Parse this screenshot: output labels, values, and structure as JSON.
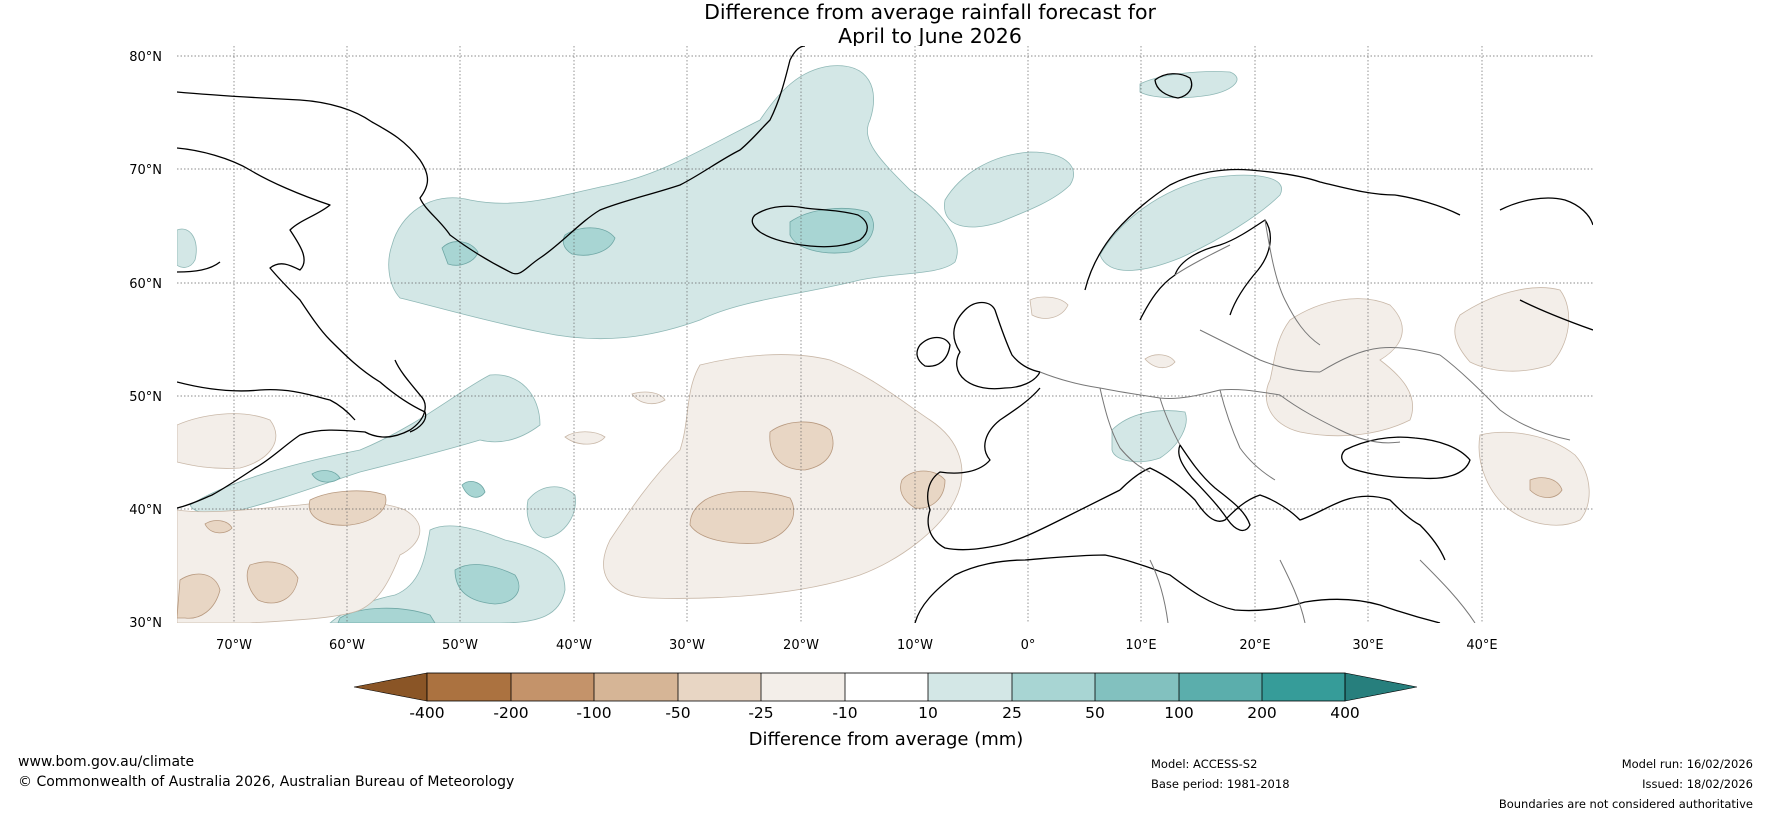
{
  "title": {
    "line1": "Difference from average rainfall forecast for",
    "line2": "April to June 2026"
  },
  "axes": {
    "lat_labels": [
      "80°N",
      "70°N",
      "60°N",
      "50°N",
      "40°N",
      "30°N"
    ],
    "lon_labels": [
      "70°W",
      "60°W",
      "50°W",
      "40°W",
      "30°W",
      "20°W",
      "10°W",
      "0°",
      "10°E",
      "20°E",
      "30°E",
      "40°E"
    ]
  },
  "legend": {
    "title": "Difference from average (mm)",
    "ticks": [
      "-400",
      "-200",
      "-100",
      "-50",
      "-25",
      "-10",
      "10",
      "25",
      "50",
      "100",
      "200",
      "400"
    ],
    "colors": [
      "#8a5526",
      "#ab7240",
      "#c4936a",
      "#d6b596",
      "#e8d6c4",
      "#f3eee9",
      "#ffffff",
      "#d3e7e6",
      "#a8d5d3",
      "#82c1bf",
      "#5baeac",
      "#369c99",
      "#277f7d"
    ]
  },
  "footer": {
    "url": "www.bom.gov.au/climate",
    "copyright": "© Commonwealth of Australia 2026, Australian Bureau of Meteorology",
    "model": "Model: ACCESS-S2",
    "base_period": "Base period: 1981-2018",
    "model_run": "Model run: 16/02/2026",
    "issued": "Issued: 18/02/2026",
    "disclaimer": "Boundaries are not considered authoritative"
  }
}
